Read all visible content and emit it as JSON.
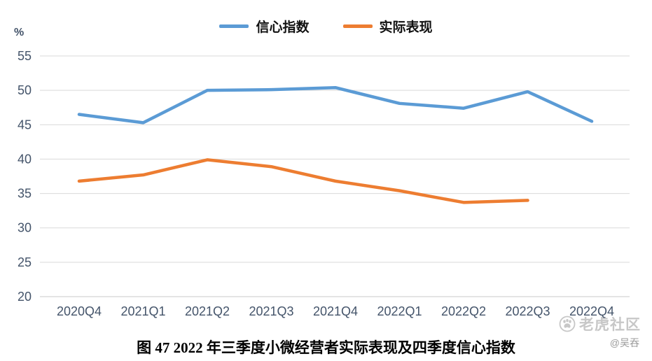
{
  "chart_data": {
    "type": "line",
    "categories": [
      "2020Q4",
      "2021Q1",
      "2021Q2",
      "2021Q3",
      "2021Q4",
      "2022Q1",
      "2022Q2",
      "2022Q3",
      "2022Q4"
    ],
    "series": [
      {
        "name": "信心指数",
        "color": "#5B9BD5",
        "values": [
          46.5,
          45.3,
          50.0,
          50.1,
          50.4,
          48.1,
          47.4,
          49.8,
          45.5
        ]
      },
      {
        "name": "实际表现",
        "color": "#ED7D31",
        "values": [
          36.8,
          37.7,
          39.9,
          38.9,
          36.8,
          35.4,
          33.7,
          34.0,
          null
        ]
      }
    ],
    "ylabel": "%",
    "ylim": [
      20,
      55
    ],
    "ytick_step": 5,
    "grid": true,
    "legend_position": "top"
  },
  "caption": {
    "text": "图 47  2022 年三季度小微经营者实际表现及四季度信心指数"
  },
  "watermark": {
    "brand": "老虎社区",
    "author": "@吴吞"
  }
}
